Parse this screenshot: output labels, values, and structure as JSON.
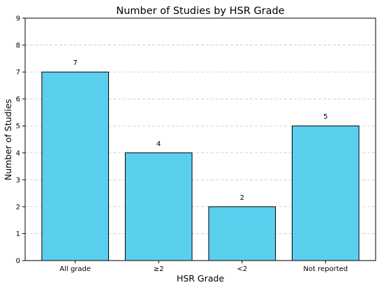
{
  "chart_data": {
    "type": "bar",
    "title": "Number of Studies by HSR Grade",
    "xlabel": "HSR Grade",
    "ylabel": "Number of Studies",
    "categories": [
      "All grade",
      "≥2",
      "<2",
      "Not reported"
    ],
    "values": [
      7,
      4,
      2,
      5
    ],
    "ylim": [
      0,
      9
    ],
    "yticks": [
      0,
      1,
      2,
      3,
      4,
      5,
      6,
      7,
      8,
      9
    ],
    "grid": "horizontal, dashed",
    "legend": "none",
    "bar_color": "#5bcfee",
    "edge_color": "#000000"
  }
}
